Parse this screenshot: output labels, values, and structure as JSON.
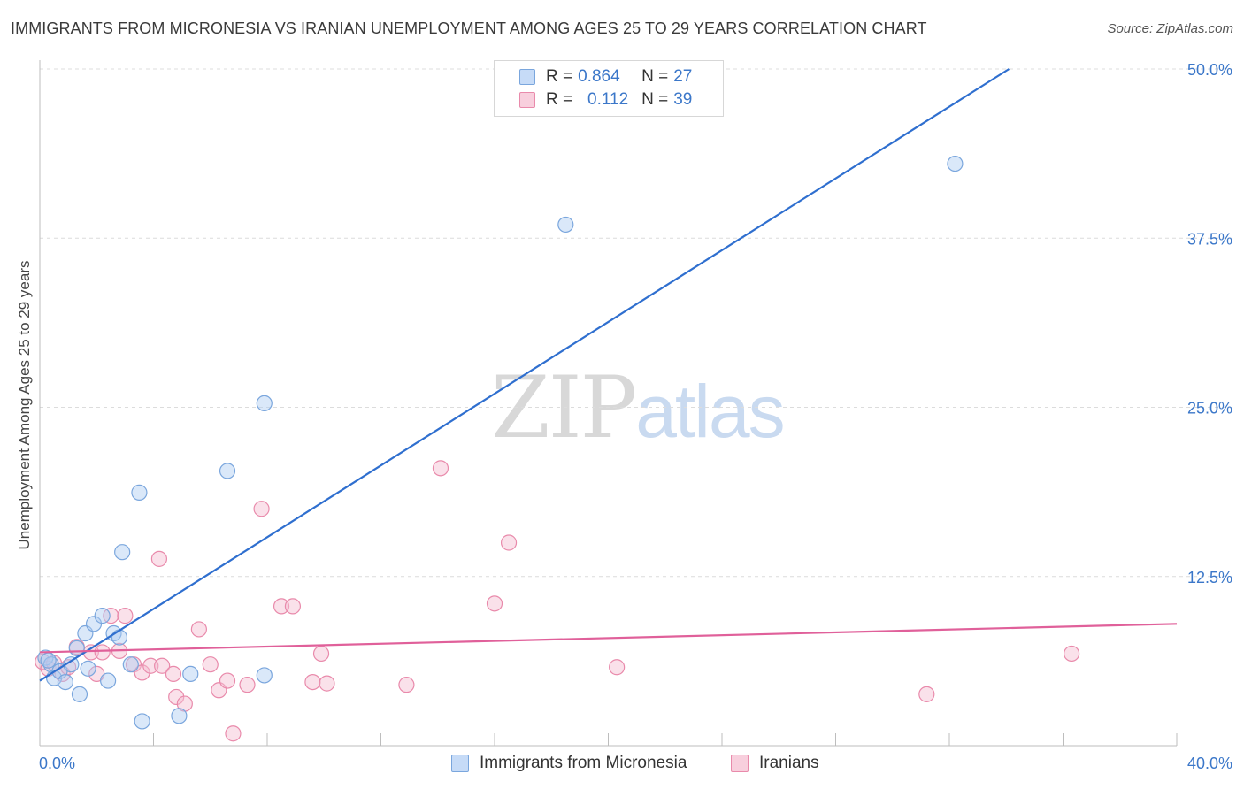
{
  "title": "IMMIGRANTS FROM MICRONESIA VS IRANIAN UNEMPLOYMENT AMONG AGES 25 TO 29 YEARS CORRELATION CHART",
  "source": "Source: ZipAtlas.com",
  "watermark": {
    "zip": "ZIP",
    "atlas": "atlas"
  },
  "legend": {
    "rows": [
      {
        "r_label": "R =",
        "r_value": "0.864",
        "n_label": "N =",
        "n_value": "27"
      },
      {
        "r_label": "R =",
        "r_value": "0.112",
        "n_label": "N =",
        "n_value": "39"
      }
    ]
  },
  "bottom_legend": [
    "Immigrants from Micronesia",
    "Iranians"
  ],
  "colors": {
    "blue_fill": "#aecbf2",
    "blue_stroke": "#7aa6dd",
    "blue_line": "#2f6fcf",
    "pink_fill": "#f5bcd0",
    "pink_stroke": "#e98aab",
    "pink_line": "#e0609a",
    "axis_label": "#3b77c9",
    "grid": "#dcdcdc"
  },
  "chart_data": {
    "type": "scatter",
    "title": "IMMIGRANTS FROM MICRONESIA VS IRANIAN UNEMPLOYMENT AMONG AGES 25 TO 29 YEARS CORRELATION CHART",
    "xlabel": "",
    "ylabel": "Unemployment Among Ages 25 to 29 years",
    "xlim": [
      0,
      40
    ],
    "ylim": [
      0,
      50
    ],
    "x_tick_labels": [
      "0.0%",
      "40.0%"
    ],
    "y_ticks": [
      12.5,
      25.0,
      37.5,
      50.0
    ],
    "y_tick_labels": [
      "12.5%",
      "25.0%",
      "37.5%",
      "50.0%"
    ],
    "series": [
      {
        "name": "Immigrants from Micronesia",
        "R": 0.864,
        "N": 27,
        "trend": {
          "x0": 0,
          "y0": 4.8,
          "x1": 34.1,
          "y1": 50.0
        },
        "points": [
          [
            0.2,
            6.5
          ],
          [
            0.4,
            6.0
          ],
          [
            0.5,
            5.0
          ],
          [
            0.7,
            5.5
          ],
          [
            0.9,
            4.7
          ],
          [
            1.1,
            6.0
          ],
          [
            1.3,
            7.2
          ],
          [
            1.4,
            3.8
          ],
          [
            1.6,
            8.3
          ],
          [
            1.7,
            5.7
          ],
          [
            1.9,
            9.0
          ],
          [
            2.2,
            9.6
          ],
          [
            2.4,
            4.8
          ],
          [
            2.6,
            8.3
          ],
          [
            2.8,
            8.0
          ],
          [
            2.9,
            14.3
          ],
          [
            3.2,
            6.0
          ],
          [
            3.5,
            18.7
          ],
          [
            3.6,
            1.8
          ],
          [
            4.9,
            2.2
          ],
          [
            5.3,
            5.3
          ],
          [
            6.6,
            20.3
          ],
          [
            7.9,
            25.3
          ],
          [
            7.9,
            5.2
          ],
          [
            18.5,
            38.5
          ],
          [
            32.2,
            43.0
          ],
          [
            0.3,
            6.3
          ]
        ]
      },
      {
        "name": "Iranians",
        "R": 0.112,
        "N": 39,
        "trend": {
          "x0": 0,
          "y0": 6.9,
          "x1": 40,
          "y1": 9.0
        },
        "points": [
          [
            0.1,
            6.2
          ],
          [
            0.3,
            5.7
          ],
          [
            0.5,
            6.1
          ],
          [
            0.8,
            5.3
          ],
          [
            1.0,
            5.8
          ],
          [
            1.3,
            7.3
          ],
          [
            1.8,
            6.9
          ],
          [
            2.0,
            5.3
          ],
          [
            2.2,
            6.9
          ],
          [
            2.5,
            9.6
          ],
          [
            2.8,
            7.0
          ],
          [
            3.0,
            9.6
          ],
          [
            3.3,
            6.0
          ],
          [
            3.6,
            5.4
          ],
          [
            3.9,
            5.9
          ],
          [
            4.2,
            13.8
          ],
          [
            4.3,
            5.9
          ],
          [
            4.7,
            5.3
          ],
          [
            4.8,
            3.6
          ],
          [
            5.1,
            3.1
          ],
          [
            5.6,
            8.6
          ],
          [
            6.0,
            6.0
          ],
          [
            6.3,
            4.1
          ],
          [
            6.6,
            4.8
          ],
          [
            6.8,
            0.9
          ],
          [
            7.3,
            4.5
          ],
          [
            7.8,
            17.5
          ],
          [
            8.5,
            10.3
          ],
          [
            8.9,
            10.3
          ],
          [
            9.6,
            4.7
          ],
          [
            9.9,
            6.8
          ],
          [
            10.1,
            4.6
          ],
          [
            12.9,
            4.5
          ],
          [
            14.1,
            20.5
          ],
          [
            16.0,
            10.5
          ],
          [
            16.5,
            15.0
          ],
          [
            20.3,
            5.8
          ],
          [
            31.2,
            3.8
          ],
          [
            36.3,
            6.8
          ]
        ]
      }
    ]
  }
}
